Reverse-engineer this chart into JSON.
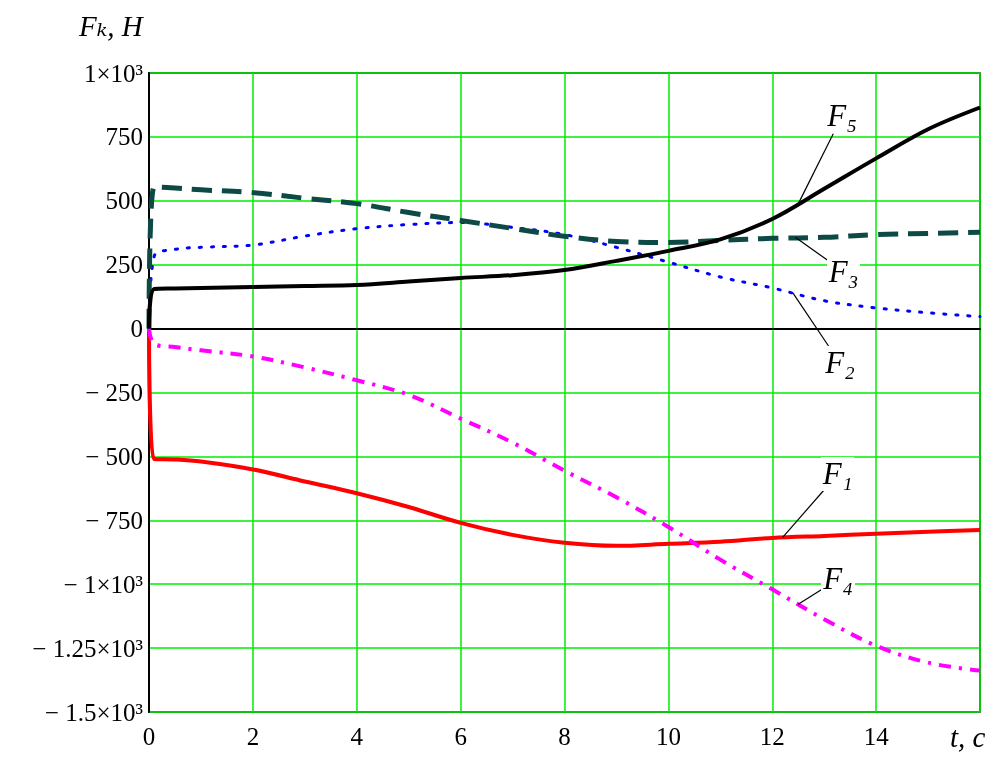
{
  "chart_data": {
    "type": "line",
    "xlabel": "t, c",
    "ylabel": "Fₖ, H",
    "x": [
      0,
      0.1,
      0.5,
      1,
      2,
      3,
      4,
      5,
      6,
      7,
      8,
      9,
      10,
      11,
      12,
      13,
      14,
      15,
      16
    ],
    "series": [
      {
        "color": "#ff0000",
        "line_style": "solid",
        "values": [
          0,
          -510,
          -512,
          -520,
          -551,
          -598,
          -644,
          -698,
          -760,
          -807,
          -838,
          -850,
          -842,
          -834,
          -819,
          -811,
          -803,
          -795,
          -788
        ]
      },
      {
        "color": "#0000ff",
        "line_style": "dotted",
        "values": [
          0,
          283,
          310,
          318,
          327,
          362,
          391,
          407,
          415,
          396,
          368,
          318,
          260,
          202,
          159,
          109,
          81,
          62,
          47
        ]
      },
      {
        "color": "#0d4a46",
        "line_style": "dashed",
        "values": [
          0,
          555,
          550,
          543,
          532,
          510,
          489,
          454,
          423,
          392,
          361,
          341,
          337,
          345,
          353,
          357,
          368,
          372,
          377
        ]
      },
      {
        "color": "#ff00ff",
        "line_style": "dashdot",
        "values": [
          0,
          -60,
          -72,
          -85,
          -109,
          -152,
          -202,
          -259,
          -352,
          -446,
          -556,
          -660,
          -776,
          -904,
          -1020,
          -1137,
          -1241,
          -1307,
          -1338
        ]
      },
      {
        "color": "#000000",
        "line_style": "solid",
        "values": [
          0,
          155,
          157,
          159,
          163,
          167,
          171,
          184,
          198,
          209,
          229,
          265,
          304,
          349,
          429,
          547,
          666,
          780,
          865
        ]
      }
    ],
    "annotations": [
      {
        "text": "F₅",
        "x": 12.5,
        "y": 488
      },
      {
        "text": "F₃",
        "x": 12.45,
        "y": 356
      },
      {
        "text": "F₂",
        "x": 12.4,
        "y": 139
      },
      {
        "text": "F₁",
        "x": 12.2,
        "y": -817
      },
      {
        "text": "F₄",
        "x": 12.5,
        "y": -1078
      }
    ],
    "xlim": [
      0,
      16
    ],
    "xticks": [
      0,
      2,
      4,
      6,
      8,
      10,
      12,
      14
    ],
    "ylim": [
      -1500,
      1000
    ],
    "yticks": [
      {
        "value": -1500,
        "label": "− 1.5×10³"
      },
      {
        "value": -1250,
        "label": "− 1.25×10³"
      },
      {
        "value": -1000,
        "label": "− 1×10³"
      },
      {
        "value": -750,
        "label": "− 750"
      },
      {
        "value": -500,
        "label": "− 500"
      },
      {
        "value": -250,
        "label": "− 250"
      },
      0,
      250,
      500,
      750,
      {
        "value": 1000,
        "label": "1×10³"
      }
    ],
    "grid": true,
    "marker": "none"
  }
}
